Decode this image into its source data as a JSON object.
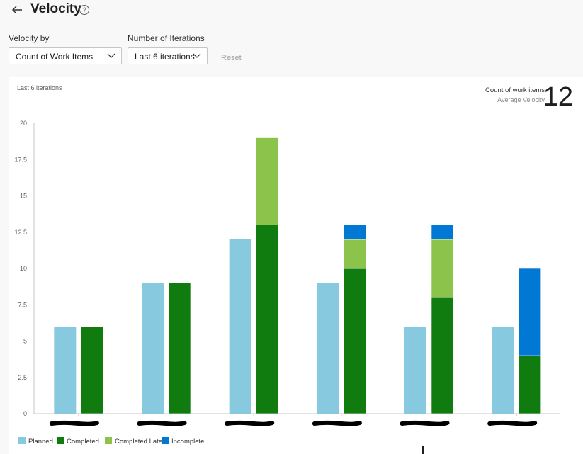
{
  "header": {
    "title": "Velocity",
    "help_glyph": "?"
  },
  "filters": {
    "velocity_by_label": "Velocity by",
    "velocity_by_value": "Count of Work Items",
    "iterations_label": "Number of Iterations",
    "iterations_value": "Last 6 iterations",
    "reset_label": "Reset"
  },
  "panel": {
    "subtitle": "Last 6 iterations",
    "metric_name": "Count of work items",
    "metric_sub": "Average Velocity",
    "metric_value": "12"
  },
  "colors": {
    "Planned": "#87cadf",
    "Completed": "#107c10",
    "Completed Late": "#8cc34a",
    "Incomplete": "#0078d4"
  },
  "chart_data": {
    "type": "bar",
    "title": "Last 6 iterations",
    "ylim": [
      0,
      20
    ],
    "yticks": [
      "0",
      "2.5",
      "5",
      "7.5",
      "10",
      "12.5",
      "15",
      "17.5",
      "20"
    ],
    "categories": [
      "",
      "",
      "",
      "",
      "",
      ""
    ],
    "series": [
      {
        "name": "Planned",
        "values": [
          6,
          9,
          12,
          9,
          6,
          6
        ]
      },
      {
        "name": "Completed",
        "values": [
          6,
          9,
          13,
          10,
          8,
          4
        ]
      },
      {
        "name": "Completed Late",
        "values": [
          0,
          0,
          6,
          2,
          4,
          0
        ]
      },
      {
        "name": "Incomplete",
        "values": [
          0,
          0,
          0,
          1,
          1,
          6
        ]
      }
    ],
    "legend": [
      "Planned",
      "Completed",
      "Completed Late",
      "Incomplete"
    ]
  }
}
